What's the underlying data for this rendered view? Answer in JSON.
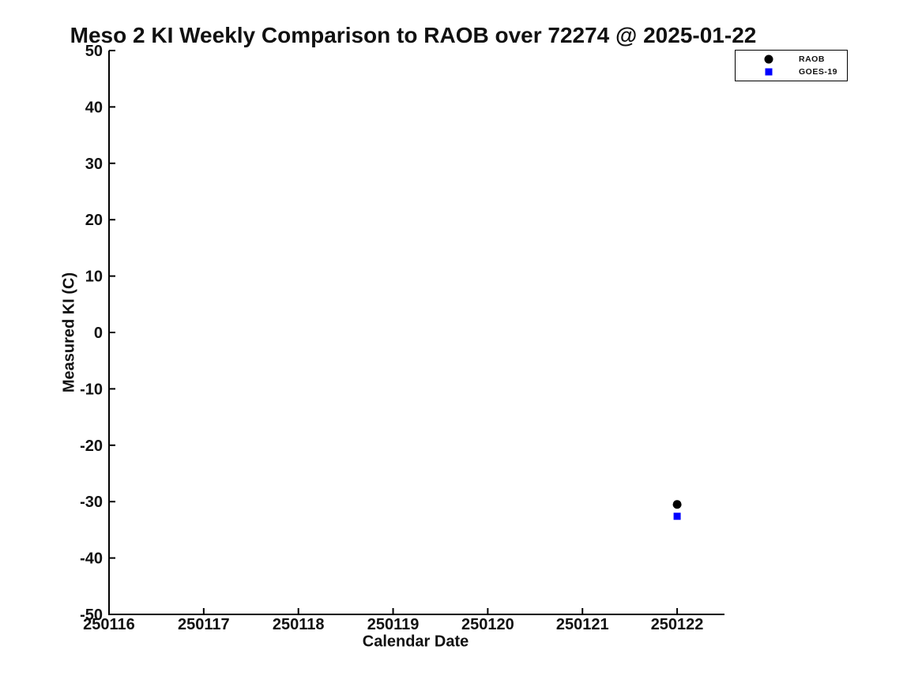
{
  "chart_data": {
    "type": "scatter",
    "title": "Meso 2 KI Weekly Comparison to RAOB over 72274 @ 2025-01-22",
    "xlabel": "Calendar Date",
    "ylabel": "Measured KI (C)",
    "xlim": [
      250116,
      250122.5
    ],
    "ylim": [
      -50,
      50
    ],
    "x_ticks": [
      250116,
      250117,
      250118,
      250119,
      250120,
      250121,
      250122
    ],
    "y_ticks": [
      -50,
      -40,
      -30,
      -20,
      -10,
      0,
      10,
      20,
      30,
      40,
      50
    ],
    "grid": false,
    "legend_position": "top-right",
    "axis_color": "#000000",
    "background_color": "#ffffff",
    "series": [
      {
        "name": "RAOB",
        "marker": "circle",
        "color": "#000000",
        "points": [
          {
            "x": 250122,
            "y": -30.5
          }
        ]
      },
      {
        "name": "GOES-19",
        "marker": "square",
        "color": "#0000ff",
        "points": [
          {
            "x": 250122,
            "y": -32.6
          }
        ]
      }
    ]
  }
}
